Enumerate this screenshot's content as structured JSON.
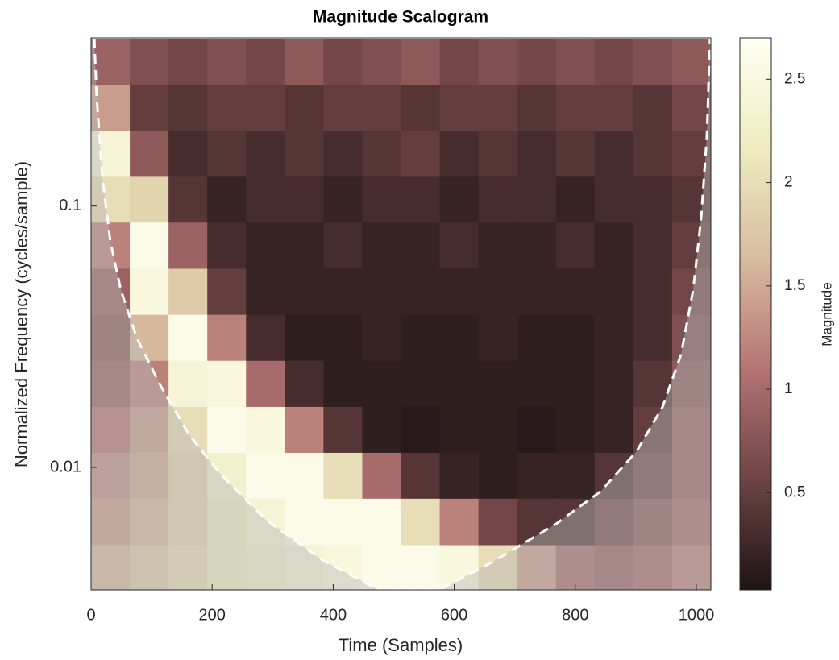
{
  "chart_data": {
    "type": "heatmap",
    "title": "Magnitude Scalogram",
    "xlabel": "Time (Samples)",
    "ylabel": "Normalized Frequency  (cycles/sample)",
    "colorbar_label": "Magnitude",
    "xlim": [
      0,
      1024
    ],
    "xticks": [
      0,
      200,
      400,
      600,
      800,
      1000
    ],
    "ylim": [
      0.0034,
      0.44
    ],
    "yticks": [
      0.01,
      0.1
    ],
    "yscale": "log",
    "clim": [
      0.03,
      2.7
    ],
    "cticks": [
      0.5,
      1,
      1.5,
      2,
      2.5
    ],
    "colormap": [
      "#1e1414",
      "#6e4444",
      "#b47474",
      "#d8bca0",
      "#eeecc0",
      "#fffff2"
    ],
    "x": [
      32,
      96,
      160,
      224,
      288,
      352,
      416,
      480,
      544,
      608,
      672,
      736,
      800,
      864,
      928,
      992
    ],
    "y": [
      0.356,
      0.238,
      0.158,
      0.106,
      0.0705,
      0.047,
      0.0313,
      0.0209,
      0.0139,
      0.0093,
      0.0062,
      0.0041
    ],
    "z": [
      [
        0.9,
        0.7,
        0.6,
        0.7,
        0.6,
        0.8,
        0.6,
        0.7,
        0.8,
        0.6,
        0.7,
        0.6,
        0.7,
        0.6,
        0.7,
        0.8
      ],
      [
        1.4,
        0.5,
        0.4,
        0.5,
        0.5,
        0.4,
        0.5,
        0.5,
        0.4,
        0.5,
        0.5,
        0.4,
        0.5,
        0.5,
        0.4,
        0.6
      ],
      [
        2.4,
        0.8,
        0.3,
        0.4,
        0.3,
        0.4,
        0.3,
        0.4,
        0.5,
        0.3,
        0.4,
        0.3,
        0.4,
        0.3,
        0.4,
        0.5
      ],
      [
        2.0,
        1.9,
        0.4,
        0.2,
        0.3,
        0.3,
        0.2,
        0.3,
        0.3,
        0.2,
        0.3,
        0.3,
        0.2,
        0.3,
        0.3,
        0.4
      ],
      [
        1.2,
        2.6,
        0.9,
        0.3,
        0.2,
        0.2,
        0.3,
        0.2,
        0.2,
        0.3,
        0.2,
        0.2,
        0.3,
        0.2,
        0.3,
        0.5
      ],
      [
        0.9,
        2.5,
        1.8,
        0.5,
        0.2,
        0.2,
        0.2,
        0.2,
        0.2,
        0.2,
        0.2,
        0.2,
        0.2,
        0.2,
        0.3,
        0.6
      ],
      [
        0.8,
        1.6,
        2.6,
        1.2,
        0.3,
        0.15,
        0.15,
        0.2,
        0.15,
        0.15,
        0.2,
        0.15,
        0.15,
        0.2,
        0.3,
        0.7
      ],
      [
        0.9,
        1.2,
        2.4,
        2.5,
        1.0,
        0.3,
        0.15,
        0.15,
        0.15,
        0.15,
        0.15,
        0.15,
        0.15,
        0.2,
        0.4,
        0.8
      ],
      [
        1.1,
        1.4,
        2.0,
        2.6,
        2.5,
        1.2,
        0.4,
        0.15,
        0.1,
        0.15,
        0.15,
        0.1,
        0.15,
        0.2,
        0.5,
        0.9
      ],
      [
        1.3,
        1.5,
        1.9,
        2.3,
        2.6,
        2.6,
        2.0,
        1.0,
        0.4,
        0.2,
        0.15,
        0.2,
        0.2,
        0.4,
        0.6,
        0.9
      ],
      [
        1.4,
        1.6,
        1.9,
        2.2,
        2.4,
        2.6,
        2.6,
        2.6,
        2.0,
        1.2,
        0.6,
        0.4,
        0.4,
        0.6,
        0.8,
        1.0
      ],
      [
        1.6,
        1.8,
        2.0,
        2.2,
        2.3,
        2.4,
        2.5,
        2.6,
        2.6,
        2.5,
        2.0,
        1.4,
        1.0,
        0.9,
        1.0,
        1.2
      ]
    ]
  }
}
